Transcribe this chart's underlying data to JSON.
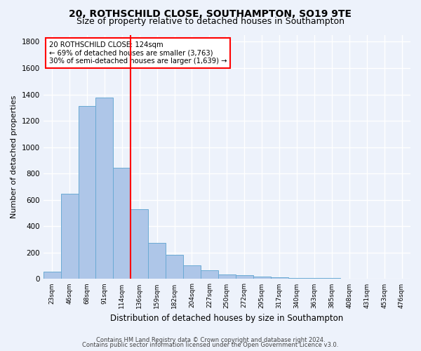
{
  "title1": "20, ROTHSCHILD CLOSE, SOUTHAMPTON, SO19 9TE",
  "title2": "Size of property relative to detached houses in Southampton",
  "xlabel": "Distribution of detached houses by size in Southampton",
  "ylabel": "Number of detached properties",
  "categories": [
    "23sqm",
    "46sqm",
    "68sqm",
    "91sqm",
    "114sqm",
    "136sqm",
    "159sqm",
    "182sqm",
    "204sqm",
    "227sqm",
    "250sqm",
    "272sqm",
    "295sqm",
    "317sqm",
    "340sqm",
    "363sqm",
    "385sqm",
    "408sqm",
    "431sqm",
    "453sqm",
    "476sqm"
  ],
  "values": [
    55,
    645,
    1310,
    1375,
    845,
    530,
    275,
    185,
    105,
    65,
    35,
    30,
    20,
    12,
    10,
    10,
    10,
    0,
    0,
    0,
    0
  ],
  "bar_color": "#aec6e8",
  "bar_edge_color": "#6aaad4",
  "vline_x": 4.5,
  "vline_color": "red",
  "annotation_text": "20 ROTHSCHILD CLOSE: 124sqm\n← 69% of detached houses are smaller (3,763)\n30% of semi-detached houses are larger (1,639) →",
  "annotation_box_color": "white",
  "annotation_box_edgecolor": "red",
  "footer1": "Contains HM Land Registry data © Crown copyright and database right 2024.",
  "footer2": "Contains public sector information licensed under the Open Government Licence v3.0.",
  "ylim": [
    0,
    1850
  ],
  "yticks": [
    0,
    200,
    400,
    600,
    800,
    1000,
    1200,
    1400,
    1600,
    1800
  ],
  "bg_color": "#edf2fb",
  "grid_color": "white",
  "title1_fontsize": 10,
  "title2_fontsize": 9
}
